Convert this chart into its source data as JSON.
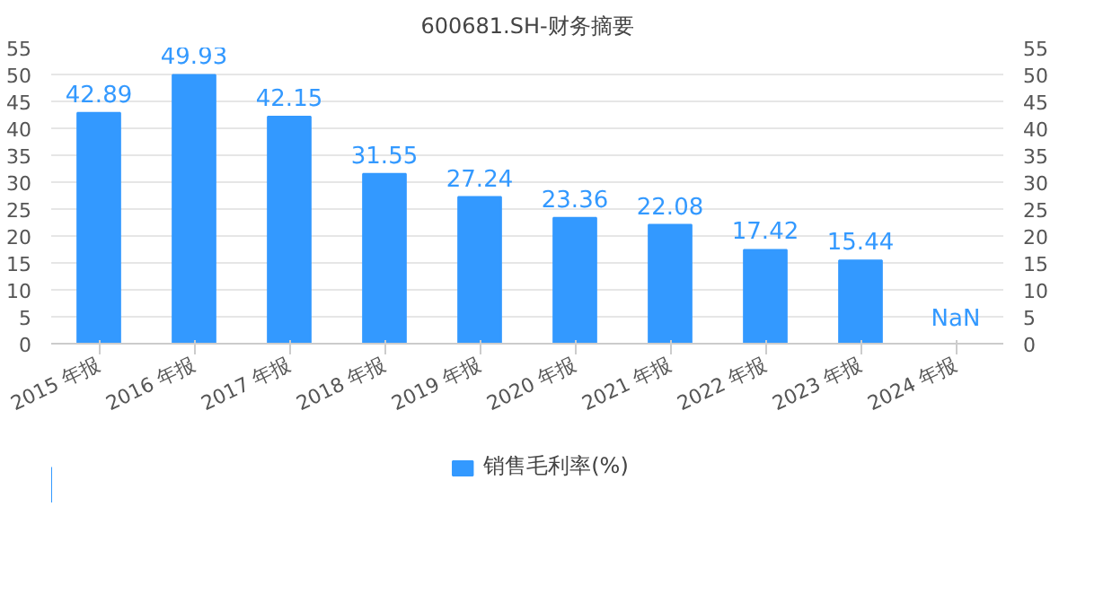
{
  "chart_data": {
    "type": "bar",
    "title": "600681.SH-财务摘要",
    "categories": [
      "2015 年报",
      "2016 年报",
      "2017 年报",
      "2018 年报",
      "2019 年报",
      "2020 年报",
      "2021 年报",
      "2022 年报",
      "2023 年报",
      "2024 年报"
    ],
    "series": [
      {
        "name": "销售毛利率(%)",
        "color": "#3399ff",
        "values": [
          42.89,
          49.93,
          42.15,
          31.55,
          27.24,
          23.36,
          22.08,
          17.42,
          15.44,
          null
        ],
        "value_labels": [
          "42.89",
          "49.93",
          "42.15",
          "31.55",
          "27.24",
          "23.36",
          "22.08",
          "17.42",
          "15.44",
          "NaN"
        ]
      }
    ],
    "ylim": [
      0,
      55
    ],
    "yticks": [
      0,
      5,
      10,
      15,
      20,
      25,
      30,
      35,
      40,
      45,
      50,
      55
    ],
    "y2lim": [
      0,
      55
    ],
    "y2ticks": [
      0,
      5,
      10,
      15,
      20,
      25,
      30,
      35,
      40,
      45,
      50,
      55
    ],
    "grid": "y",
    "legend": "bottom"
  }
}
